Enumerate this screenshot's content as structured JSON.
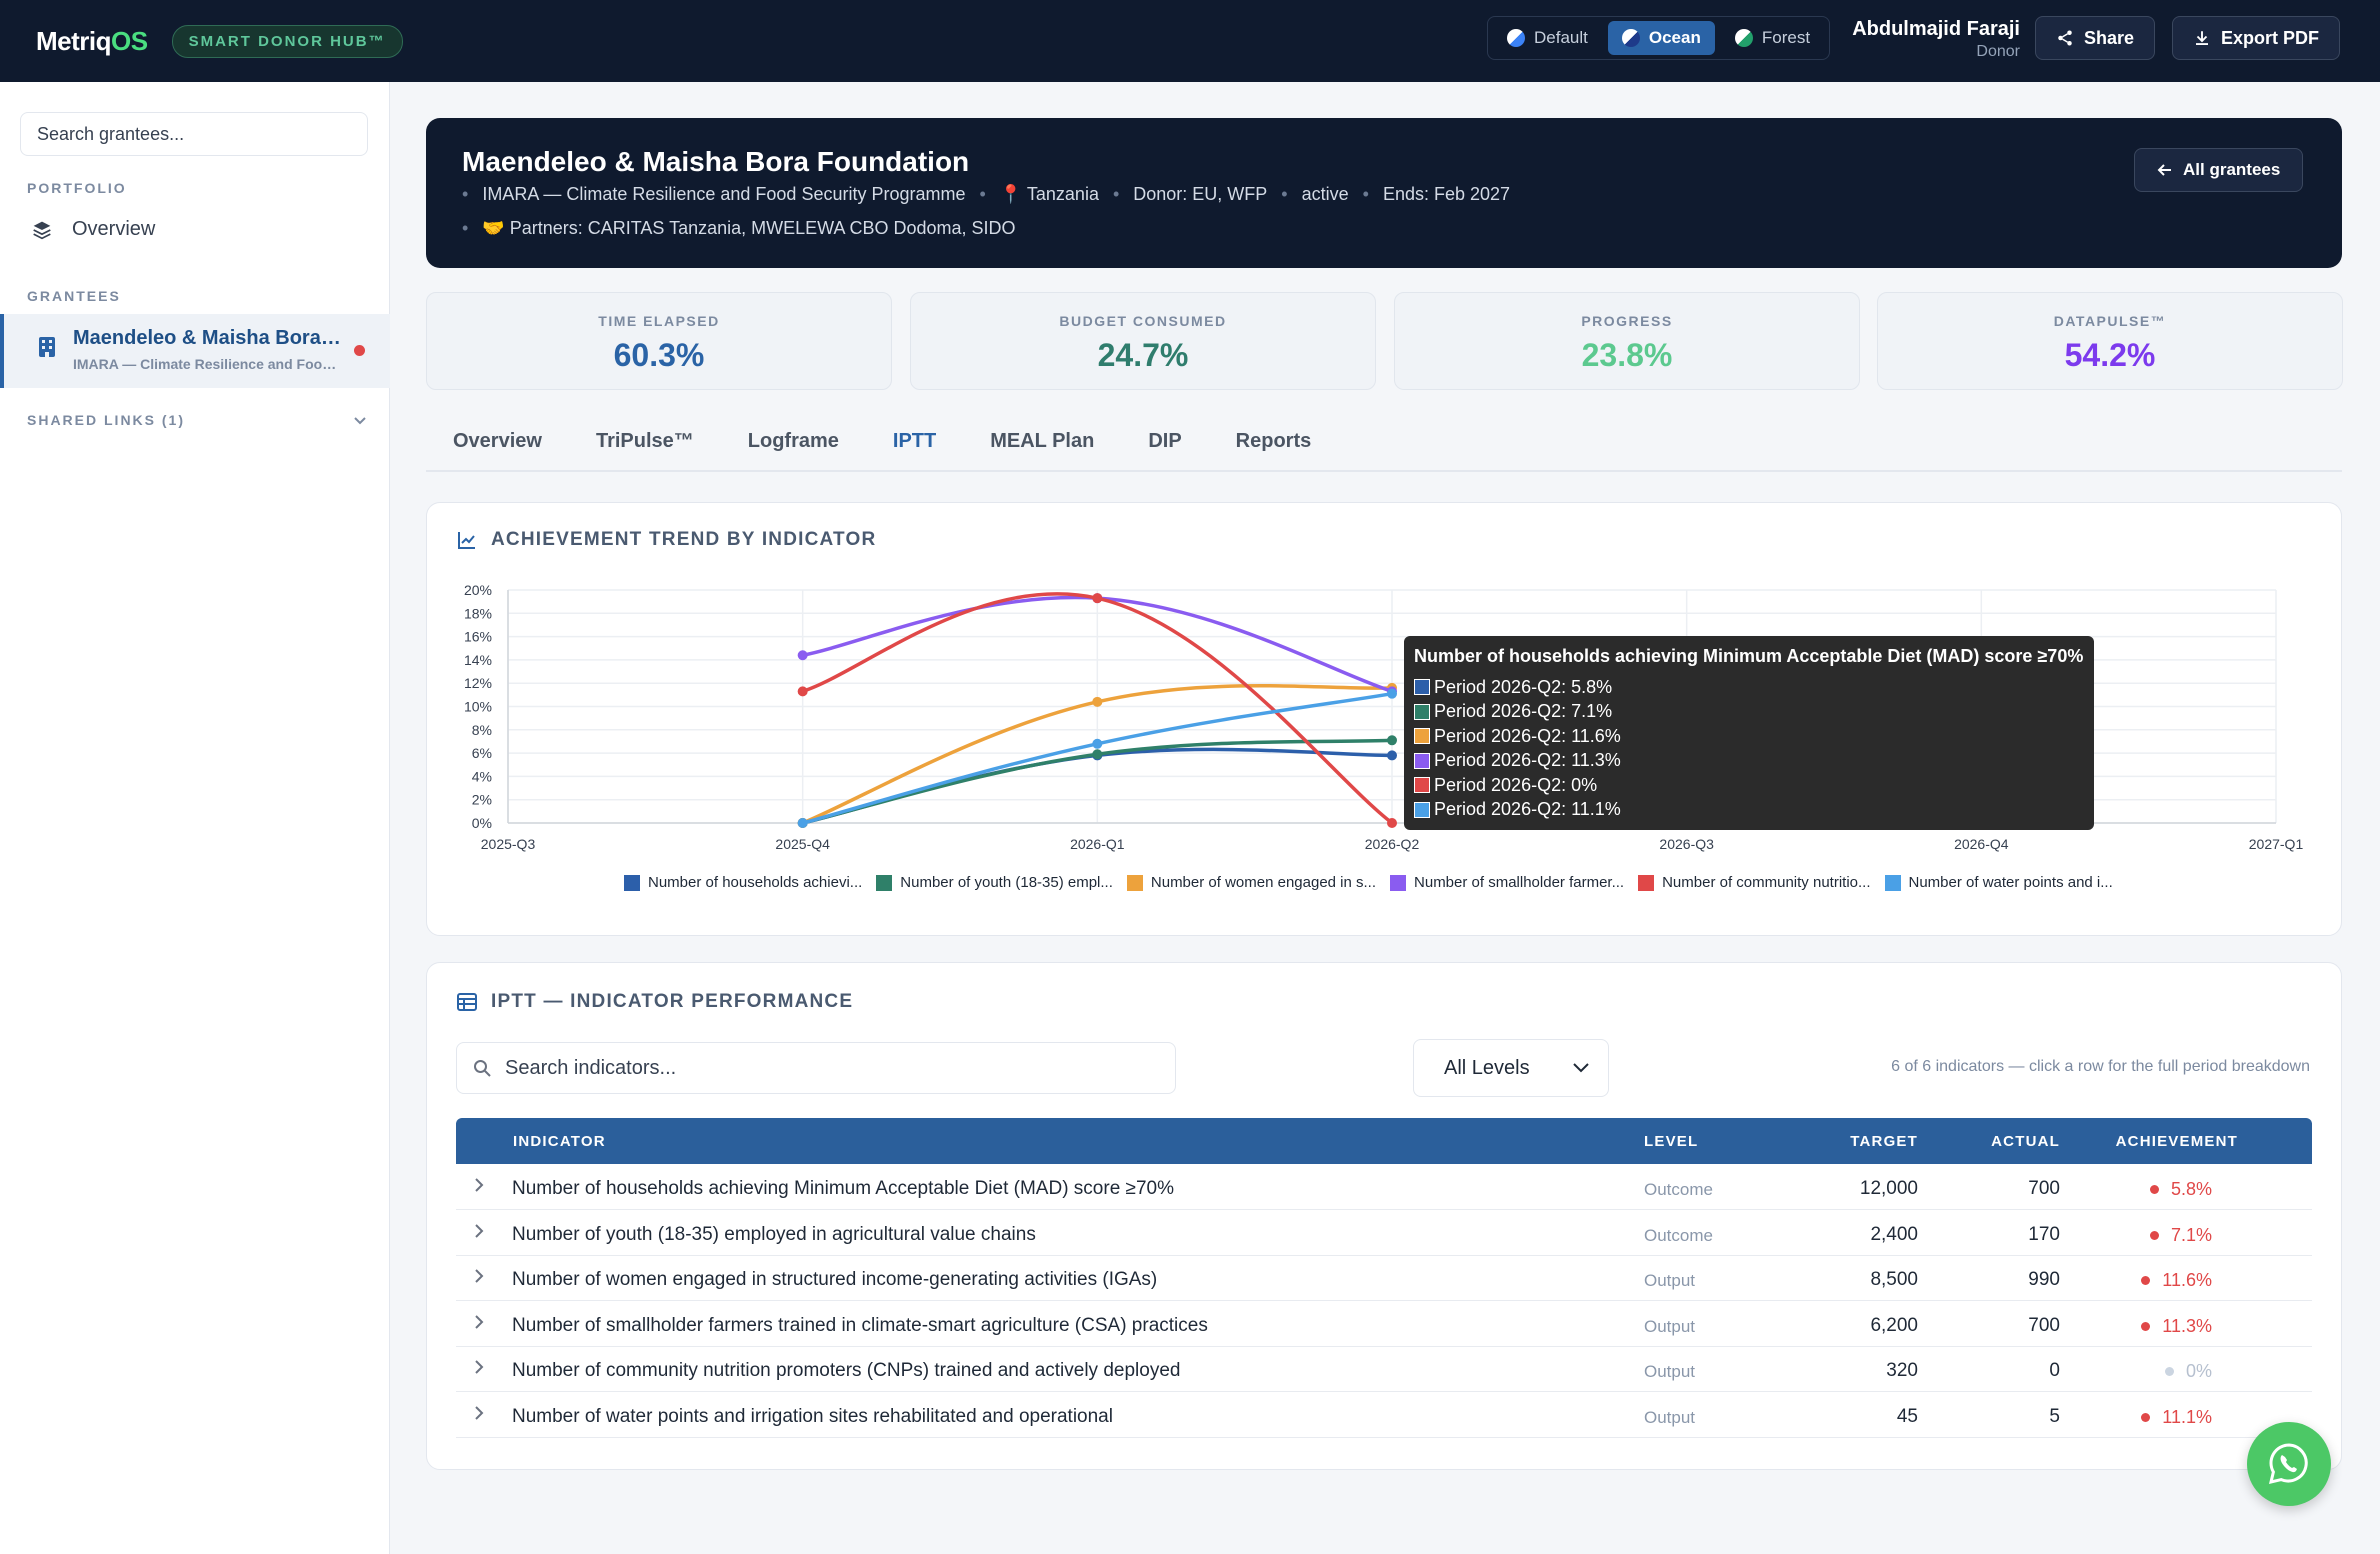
{
  "brand": {
    "logo_main": "Metriq",
    "logo_accent": "OS",
    "badge": "SMART DONOR HUB™"
  },
  "themes": [
    {
      "label": "Default",
      "active": false
    },
    {
      "label": "Ocean",
      "active": true
    },
    {
      "label": "Forest",
      "active": false
    }
  ],
  "user": {
    "name": "Abdulmajid Faraji",
    "role": "Donor"
  },
  "topbar": {
    "share_label": "Share",
    "export_label": "Export PDF"
  },
  "sidebar": {
    "search_placeholder": "Search grantees...",
    "portfolio_label": "PORTFOLIO",
    "overview_label": "Overview",
    "grantees_label": "GRANTEES",
    "grantee": {
      "name": "Maendeleo & Maisha Bora Foundation",
      "sub": "IMARA — Climate Resilience and Food Security Programme"
    },
    "shared_links_label": "SHARED LINKS (1)"
  },
  "hero": {
    "title": "Maendeleo & Maisha Bora Foundation",
    "programme": "IMARA — Climate Resilience and Food Security Programme",
    "location": "📍 Tanzania",
    "donor": "Donor: EU, WFP",
    "status": "active",
    "ends": "Ends: Feb 2027",
    "partners": "🤝 Partners: CARITAS Tanzania, MWELEWA CBO Dodoma, SIDO",
    "all_grantees_label": "All grantees"
  },
  "stats": [
    {
      "label": "TIME ELAPSED",
      "value": "60.3%",
      "color": "#2a63a6"
    },
    {
      "label": "BUDGET CONSUMED",
      "value": "24.7%",
      "color": "#2f7d6d"
    },
    {
      "label": "PROGRESS",
      "value": "23.8%",
      "color": "#5cc98f"
    },
    {
      "label": "DATAPULSE™",
      "value": "54.2%",
      "color": "#7c3aed"
    }
  ],
  "tabs": [
    {
      "label": "Overview",
      "active": false
    },
    {
      "label": "TriPulse™",
      "active": false
    },
    {
      "label": "Logframe",
      "active": false
    },
    {
      "label": "IPTT",
      "active": true
    },
    {
      "label": "MEAL Plan",
      "active": false
    },
    {
      "label": "DIP",
      "active": false
    },
    {
      "label": "Reports",
      "active": false
    }
  ],
  "trend": {
    "title": "ACHIEVEMENT TREND BY INDICATOR"
  },
  "chart_data": {
    "type": "line",
    "x": [
      "2025-Q3",
      "2025-Q4",
      "2026-Q1",
      "2026-Q2",
      "2026-Q3",
      "2026-Q4",
      "2027-Q1"
    ],
    "ylim": [
      0,
      20
    ],
    "yticks": [
      "0%",
      "2%",
      "4%",
      "6%",
      "8%",
      "10%",
      "12%",
      "14%",
      "16%",
      "18%",
      "20%"
    ],
    "grid": true,
    "legend_position": "bottom",
    "series": [
      {
        "name": "Number of households achievi...",
        "color": "#2c5faa",
        "values": [
          null,
          0,
          5.8,
          5.8,
          null,
          null,
          null
        ]
      },
      {
        "name": "Number of youth (18-35) empl...",
        "color": "#2f8069",
        "values": [
          null,
          0,
          5.9,
          7.1,
          null,
          null,
          null
        ]
      },
      {
        "name": "Number of women engaged in s...",
        "color": "#eda23c",
        "values": [
          null,
          0,
          10.4,
          11.6,
          null,
          null,
          null
        ]
      },
      {
        "name": "Number of smallholder farmer...",
        "color": "#8a5cf0",
        "values": [
          null,
          14.4,
          19.3,
          11.3,
          null,
          null,
          null
        ]
      },
      {
        "name": "Number of community nutritio...",
        "color": "#e04848",
        "values": [
          null,
          11.3,
          19.3,
          0,
          null,
          null,
          null
        ]
      },
      {
        "name": "Number of water points and i...",
        "color": "#4aa0e6",
        "values": [
          null,
          0,
          6.8,
          11.1,
          null,
          null,
          null
        ]
      }
    ],
    "tooltip": {
      "title": "Number of households achieving Minimum Acceptable Diet (MAD) score ≥70%",
      "rows": [
        {
          "label": "Period 2026-Q2: 5.8%",
          "color": "#2c5faa"
        },
        {
          "label": "Period 2026-Q2: 7.1%",
          "color": "#2f8069"
        },
        {
          "label": "Period 2026-Q2: 11.6%",
          "color": "#eda23c"
        },
        {
          "label": "Period 2026-Q2: 11.3%",
          "color": "#8a5cf0"
        },
        {
          "label": "Period 2026-Q2: 0%",
          "color": "#e04848"
        },
        {
          "label": "Period 2026-Q2: 11.1%",
          "color": "#4aa0e6"
        }
      ]
    }
  },
  "iptt": {
    "title": "IPTT — INDICATOR PERFORMANCE",
    "search_placeholder": "Search indicators...",
    "level_filter": "All Levels",
    "count_note": "6 of 6 indicators — click a row for the full period breakdown",
    "headers": {
      "indicator": "INDICATOR",
      "level": "LEVEL",
      "target": "TARGET",
      "actual": "ACTUAL",
      "achievement": "ACHIEVEMENT"
    },
    "rows": [
      {
        "indicator": "Number of households achieving Minimum Acceptable Diet (MAD) score ≥70%",
        "level": "Outcome",
        "target": "12,000",
        "actual": "700",
        "achievement": "5.8%",
        "color": "#e04848"
      },
      {
        "indicator": "Number of youth (18-35) employed in agricultural value chains",
        "level": "Outcome",
        "target": "2,400",
        "actual": "170",
        "achievement": "7.1%",
        "color": "#e04848"
      },
      {
        "indicator": "Number of women engaged in structured income-generating activities (IGAs)",
        "level": "Output",
        "target": "8,500",
        "actual": "990",
        "achievement": "11.6%",
        "color": "#e04848"
      },
      {
        "indicator": "Number of smallholder farmers trained in climate-smart agriculture (CSA) practices",
        "level": "Output",
        "target": "6,200",
        "actual": "700",
        "achievement": "11.3%",
        "color": "#e04848"
      },
      {
        "indicator": "Number of community nutrition promoters (CNPs) trained and actively deployed",
        "level": "Output",
        "target": "320",
        "actual": "0",
        "achievement": "0%",
        "color": "#cbd5e1"
      },
      {
        "indicator": "Number of water points and irrigation sites rehabilitated and operational",
        "level": "Output",
        "target": "45",
        "actual": "5",
        "achievement": "11.1%",
        "color": "#e04848"
      }
    ]
  }
}
